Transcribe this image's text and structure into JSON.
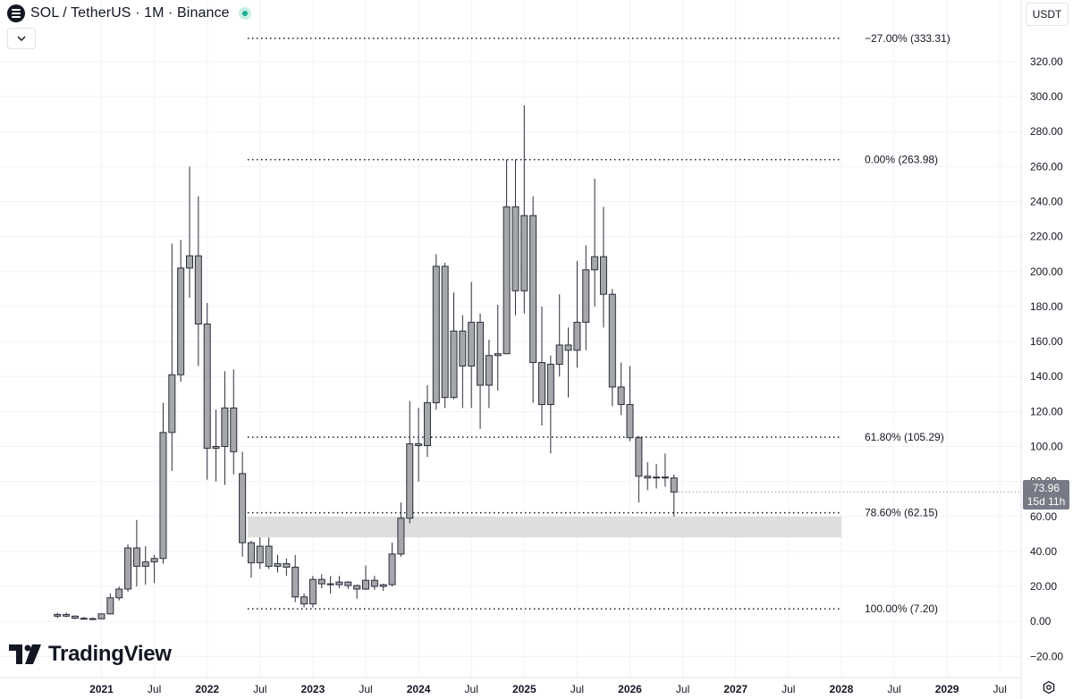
{
  "header": {
    "symbol_title": "SOL / TetherUS · 1M · Binance",
    "currency_label": "USDT",
    "icons": [
      "solana-icon",
      "live-status-dot",
      "chevron-down-icon",
      "settings-icon"
    ]
  },
  "watermark": {
    "text": "TradingView",
    "logo_icon": "tradingview-logo-icon"
  },
  "price_badge": {
    "price": "73.96",
    "countdown": "15d 11h"
  },
  "colors": {
    "candle_body": "#a6a7ab",
    "candle_border": "#2a2e39",
    "grid": "#f0f3fa",
    "zone": "#dcdcdc",
    "badge": "#787b86",
    "live": "#22ab94"
  },
  "chart_data": {
    "type": "candlestick",
    "title": "SOL / TetherUS · 1M · Binance",
    "ylim": [
      -28,
      345
    ],
    "y_ticks": [
      -20,
      0,
      20,
      40,
      60,
      80,
      100,
      120,
      140,
      160,
      180,
      200,
      220,
      240,
      260,
      280,
      300,
      320
    ],
    "y_tick_labels": [
      "−20.00",
      "0.00",
      "20.00",
      "40.00",
      "60.00",
      "80.00",
      "100.00",
      "120.00",
      "140.00",
      "160.00",
      "180.00",
      "200.00",
      "220.00",
      "240.00",
      "260.00",
      "280.00",
      "300.00",
      "320.00"
    ],
    "x_axis_ticks": [
      {
        "label": "2021",
        "date": "2021-01"
      },
      {
        "label": "Jul",
        "date": "2021-07"
      },
      {
        "label": "2022",
        "date": "2022-01"
      },
      {
        "label": "Jul",
        "date": "2022-07"
      },
      {
        "label": "2023",
        "date": "2023-01"
      },
      {
        "label": "Jul",
        "date": "2023-07"
      },
      {
        "label": "2024",
        "date": "2024-01"
      },
      {
        "label": "Jul",
        "date": "2024-07"
      },
      {
        "label": "2025",
        "date": "2025-01"
      },
      {
        "label": "Jul",
        "date": "2025-07"
      },
      {
        "label": "2026",
        "date": "2026-01"
      },
      {
        "label": "Jul",
        "date": "2026-07"
      },
      {
        "label": "2027",
        "date": "2027-01"
      },
      {
        "label": "Jul",
        "date": "2027-07"
      },
      {
        "label": "2028",
        "date": "2028-01"
      },
      {
        "label": "Jul",
        "date": "2028-07"
      },
      {
        "label": "2029",
        "date": "2029-01"
      },
      {
        "label": "Jul",
        "date": "2029-07"
      }
    ],
    "candles": [
      {
        "date": "2020-08",
        "o": 3.0,
        "h": 5.0,
        "l": 2.0,
        "c": 4.0
      },
      {
        "date": "2020-09",
        "o": 4.0,
        "h": 5.0,
        "l": 2.5,
        "c": 3.0
      },
      {
        "date": "2020-10",
        "o": 3.0,
        "h": 3.5,
        "l": 1.2,
        "c": 1.8
      },
      {
        "date": "2020-11",
        "o": 1.8,
        "h": 2.5,
        "l": 1.1,
        "c": 1.6
      },
      {
        "date": "2020-12",
        "o": 1.6,
        "h": 2.3,
        "l": 1.3,
        "c": 1.5
      },
      {
        "date": "2021-01",
        "o": 1.5,
        "h": 4.5,
        "l": 1.4,
        "c": 4.3
      },
      {
        "date": "2021-02",
        "o": 4.3,
        "h": 16.0,
        "l": 4.0,
        "c": 13.5
      },
      {
        "date": "2021-03",
        "o": 13.5,
        "h": 20.0,
        "l": 12.0,
        "c": 18.5
      },
      {
        "date": "2021-04",
        "o": 18.5,
        "h": 44.0,
        "l": 17.0,
        "c": 42.0
      },
      {
        "date": "2021-05",
        "o": 42.0,
        "h": 58.0,
        "l": 20.0,
        "c": 31.5
      },
      {
        "date": "2021-06",
        "o": 31.5,
        "h": 43.0,
        "l": 21.0,
        "c": 34.0
      },
      {
        "date": "2021-07",
        "o": 34.0,
        "h": 38.0,
        "l": 22.0,
        "c": 36.0
      },
      {
        "date": "2021-08",
        "o": 36.0,
        "h": 125.0,
        "l": 33.0,
        "c": 108.0
      },
      {
        "date": "2021-09",
        "o": 108.0,
        "h": 216.0,
        "l": 86.0,
        "c": 141.0
      },
      {
        "date": "2021-10",
        "o": 141.0,
        "h": 218.0,
        "l": 137.0,
        "c": 202.0
      },
      {
        "date": "2021-11",
        "o": 202.0,
        "h": 260.0,
        "l": 185.0,
        "c": 209.0
      },
      {
        "date": "2021-12",
        "o": 209.0,
        "h": 243.0,
        "l": 146.0,
        "c": 170.0
      },
      {
        "date": "2022-01",
        "o": 170.0,
        "h": 182.0,
        "l": 81.0,
        "c": 99.0
      },
      {
        "date": "2022-02",
        "o": 99.0,
        "h": 121.0,
        "l": 80.0,
        "c": 100.0
      },
      {
        "date": "2022-03",
        "o": 100.0,
        "h": 143.0,
        "l": 78.0,
        "c": 122.0
      },
      {
        "date": "2022-04",
        "o": 122.0,
        "h": 144.0,
        "l": 84.0,
        "c": 97.0
      },
      {
        "date": "2022-05",
        "o": 84.5,
        "h": 97.0,
        "l": 37.0,
        "c": 45.0
      },
      {
        "date": "2022-06",
        "o": 45.0,
        "h": 46.0,
        "l": 25.0,
        "c": 33.5
      },
      {
        "date": "2022-07",
        "o": 33.5,
        "h": 48.0,
        "l": 30.0,
        "c": 43.0
      },
      {
        "date": "2022-08",
        "o": 43.0,
        "h": 48.0,
        "l": 30.0,
        "c": 31.5
      },
      {
        "date": "2022-09",
        "o": 31.5,
        "h": 38.0,
        "l": 28.0,
        "c": 33.0
      },
      {
        "date": "2022-10",
        "o": 33.0,
        "h": 36.0,
        "l": 26.0,
        "c": 31.0
      },
      {
        "date": "2022-11",
        "o": 31.0,
        "h": 38.0,
        "l": 11.0,
        "c": 14.0
      },
      {
        "date": "2022-12",
        "o": 14.0,
        "h": 16.0,
        "l": 8.0,
        "c": 10.0
      },
      {
        "date": "2023-01",
        "o": 10.0,
        "h": 26.0,
        "l": 8.0,
        "c": 24.0
      },
      {
        "date": "2023-02",
        "o": 24.0,
        "h": 27.0,
        "l": 19.0,
        "c": 21.5
      },
      {
        "date": "2023-03",
        "o": 21.5,
        "h": 26.0,
        "l": 16.0,
        "c": 21.0
      },
      {
        "date": "2023-04",
        "o": 21.0,
        "h": 26.0,
        "l": 19.0,
        "c": 22.5
      },
      {
        "date": "2023-05",
        "o": 22.5,
        "h": 23.0,
        "l": 18.5,
        "c": 20.5
      },
      {
        "date": "2023-06",
        "o": 20.5,
        "h": 21.0,
        "l": 13.0,
        "c": 18.5
      },
      {
        "date": "2023-07",
        "o": 18.5,
        "h": 32.0,
        "l": 18.0,
        "c": 23.5
      },
      {
        "date": "2023-08",
        "o": 23.5,
        "h": 26.0,
        "l": 18.0,
        "c": 20.0
      },
      {
        "date": "2023-09",
        "o": 20.0,
        "h": 21.5,
        "l": 17.5,
        "c": 21.0
      },
      {
        "date": "2023-10",
        "o": 21.0,
        "h": 45.0,
        "l": 20.0,
        "c": 38.5
      },
      {
        "date": "2023-11",
        "o": 38.5,
        "h": 68.0,
        "l": 37.0,
        "c": 59.0
      },
      {
        "date": "2023-12",
        "o": 59.0,
        "h": 126.0,
        "l": 56.0,
        "c": 101.5
      },
      {
        "date": "2024-01",
        "o": 101.5,
        "h": 122.0,
        "l": 80.0,
        "c": 100.5
      },
      {
        "date": "2024-02",
        "o": 100.5,
        "h": 135.0,
        "l": 94.0,
        "c": 125.0
      },
      {
        "date": "2024-03",
        "o": 125.0,
        "h": 210.0,
        "l": 121.0,
        "c": 203.0
      },
      {
        "date": "2024-04",
        "o": 203.0,
        "h": 205.0,
        "l": 122.0,
        "c": 128.0
      },
      {
        "date": "2024-05",
        "o": 128.0,
        "h": 188.0,
        "l": 127.0,
        "c": 166.0
      },
      {
        "date": "2024-06",
        "o": 166.0,
        "h": 175.0,
        "l": 122.0,
        "c": 146.0
      },
      {
        "date": "2024-07",
        "o": 146.0,
        "h": 194.0,
        "l": 122.0,
        "c": 171.0
      },
      {
        "date": "2024-08",
        "o": 171.0,
        "h": 176.0,
        "l": 110.0,
        "c": 135.0
      },
      {
        "date": "2024-09",
        "o": 135.0,
        "h": 161.0,
        "l": 122.0,
        "c": 152.0
      },
      {
        "date": "2024-10",
        "o": 152.0,
        "h": 181.0,
        "l": 132.0,
        "c": 153.0
      },
      {
        "date": "2024-11",
        "o": 153.0,
        "h": 264.0,
        "l": 155.0,
        "c": 237.0
      },
      {
        "date": "2024-12",
        "o": 237.0,
        "h": 264.0,
        "l": 175.0,
        "c": 189.0
      },
      {
        "date": "2025-01",
        "o": 189.0,
        "h": 295.0,
        "l": 176.0,
        "c": 232.0
      },
      {
        "date": "2025-02",
        "o": 232.0,
        "h": 243.0,
        "l": 125.0,
        "c": 148.0
      },
      {
        "date": "2025-03",
        "o": 148.0,
        "h": 180.0,
        "l": 112.0,
        "c": 124.0
      },
      {
        "date": "2025-04",
        "o": 124.0,
        "h": 152.0,
        "l": 96.0,
        "c": 147.0
      },
      {
        "date": "2025-05",
        "o": 147.0,
        "h": 187.0,
        "l": 140.0,
        "c": 158.0
      },
      {
        "date": "2025-06",
        "o": 158.0,
        "h": 168.0,
        "l": 128.0,
        "c": 155.0
      },
      {
        "date": "2025-07",
        "o": 155.0,
        "h": 206.0,
        "l": 145.0,
        "c": 171.0
      },
      {
        "date": "2025-08",
        "o": 171.0,
        "h": 215.0,
        "l": 155.0,
        "c": 201.0
      },
      {
        "date": "2025-09",
        "o": 201.0,
        "h": 253.0,
        "l": 180.0,
        "c": 208.5
      },
      {
        "date": "2025-10",
        "o": 208.5,
        "h": 237.0,
        "l": 168.0,
        "c": 187.0
      },
      {
        "date": "2025-11",
        "o": 187.0,
        "h": 190.0,
        "l": 123.0,
        "c": 134.0
      },
      {
        "date": "2025-12",
        "o": 134.0,
        "h": 148.0,
        "l": 118.0,
        "c": 124.0
      },
      {
        "date": "2026-01",
        "o": 124.0,
        "h": 146.0,
        "l": 103.0,
        "c": 105.0
      },
      {
        "date": "2026-02",
        "o": 105.0,
        "h": 106.0,
        "l": 68.0,
        "c": 83.0
      },
      {
        "date": "2026-03",
        "o": 83.0,
        "h": 91.0,
        "l": 75.0,
        "c": 82.0
      },
      {
        "date": "2026-04",
        "o": 82.0,
        "h": 90.0,
        "l": 76.0,
        "c": 82.5
      },
      {
        "date": "2026-05",
        "o": 82.5,
        "h": 96.0,
        "l": 77.0,
        "c": 82.0
      },
      {
        "date": "2026-06",
        "o": 82.0,
        "h": 84.0,
        "l": 60.0,
        "c": 73.96
      }
    ],
    "fib_levels": [
      {
        "label": "−27.00% (333.31)",
        "value": 333.31
      },
      {
        "label": "0.00% (263.98)",
        "value": 263.98
      },
      {
        "label": "61.80% (105.29)",
        "value": 105.29
      },
      {
        "label": "78.60% (62.15)",
        "value": 62.15
      },
      {
        "label": "100.00% (7.20)",
        "value": 7.2
      }
    ],
    "fib_start": "2022-06",
    "fib_end": "2028-01",
    "support_zone": {
      "from": 48,
      "to": 60,
      "start": "2022-06",
      "end": "2028-01"
    },
    "last_price": 73.96,
    "grid": true
  }
}
